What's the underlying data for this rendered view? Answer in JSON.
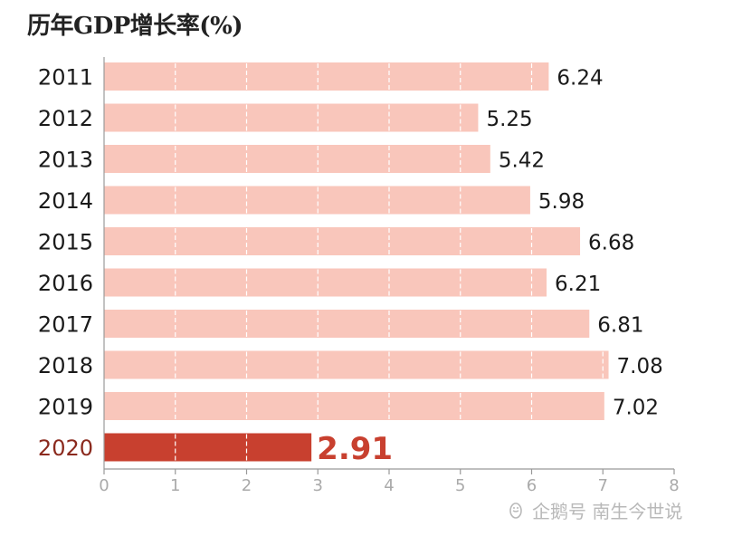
{
  "chart_data": {
    "type": "bar",
    "orientation": "horizontal",
    "title": "历年GDP增长率(%)",
    "categories": [
      "2011",
      "2012",
      "2013",
      "2014",
      "2015",
      "2016",
      "2017",
      "2018",
      "2019",
      "2020"
    ],
    "values": [
      6.24,
      5.25,
      5.42,
      5.98,
      6.68,
      6.21,
      6.81,
      7.08,
      7.02,
      2.91
    ],
    "value_labels": [
      "6.24",
      "5.25",
      "5.42",
      "5.98",
      "6.68",
      "6.21",
      "6.81",
      "7.08",
      "7.02",
      "2.91"
    ],
    "highlight_category": "2020",
    "xlim": [
      0,
      8
    ],
    "xticks": [
      "0",
      "1",
      "2",
      "3",
      "4",
      "5",
      "6",
      "7",
      "8"
    ],
    "grid": "dashed vertical lines inside bars",
    "xlabel": "",
    "ylabel": ""
  },
  "colors": {
    "bar": "#f9c6bb",
    "highlight_bar": "#c8402f",
    "highlight_label": "#c8402f",
    "highlight_year": "#8b2a1e",
    "text": "#1a1a1a",
    "axis": "#999999",
    "tick_label": "#aaaaaa",
    "watermark": "#b9b9b9"
  },
  "watermark": {
    "icon": "penguin-icon",
    "text": "企鹅号 南生今世说"
  }
}
